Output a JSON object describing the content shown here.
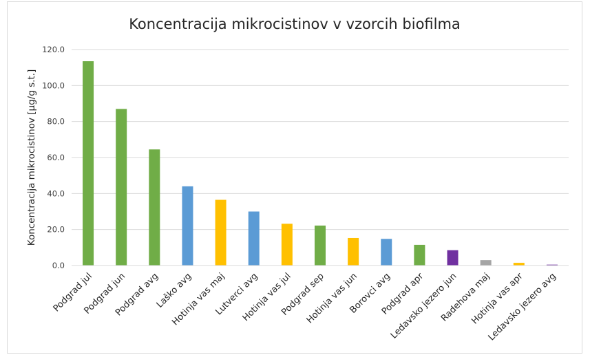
{
  "chart_data": {
    "type": "bar",
    "title": "Koncentracija mikrocistinov v vzorcih biofilma",
    "xlabel": "",
    "ylabel": "Koncentracija mikrocistinov [µg/g s.t.]",
    "ylim": [
      0,
      120
    ],
    "yticks": [
      "0.0",
      "20.0",
      "40.0",
      "60.0",
      "80.0",
      "100.0",
      "120.0"
    ],
    "grid": true,
    "legend": "none",
    "categories": [
      "Podgrad jul",
      "Podgrad jun",
      "Podgrad avg",
      "Laško avg",
      "Hotinja vas maj",
      "Lutverci avg",
      "Hotinja vas jul",
      "Podgrad sep",
      "Hotinja vas jun",
      "Borovci avg",
      "Podgrad apr",
      "Ledavsko jezero jun",
      "Radehova maj",
      "Hotinja vas apr",
      "Ledavsko jezero avg"
    ],
    "values": [
      113.5,
      87.0,
      64.5,
      44.0,
      36.5,
      30.0,
      23.2,
      22.2,
      15.3,
      14.8,
      11.5,
      8.5,
      3.0,
      1.5,
      0.5
    ],
    "colors": [
      "#70ad47",
      "#70ad47",
      "#70ad47",
      "#5b9bd5",
      "#ffc000",
      "#5b9bd5",
      "#ffc000",
      "#70ad47",
      "#ffc000",
      "#5b9bd5",
      "#70ad47",
      "#7030a0",
      "#a5a5a5",
      "#ffc000",
      "#7030a0"
    ]
  },
  "colors": {
    "gridline": "#d9d9d9",
    "border": "#d9d9d9",
    "text": "#404040"
  }
}
